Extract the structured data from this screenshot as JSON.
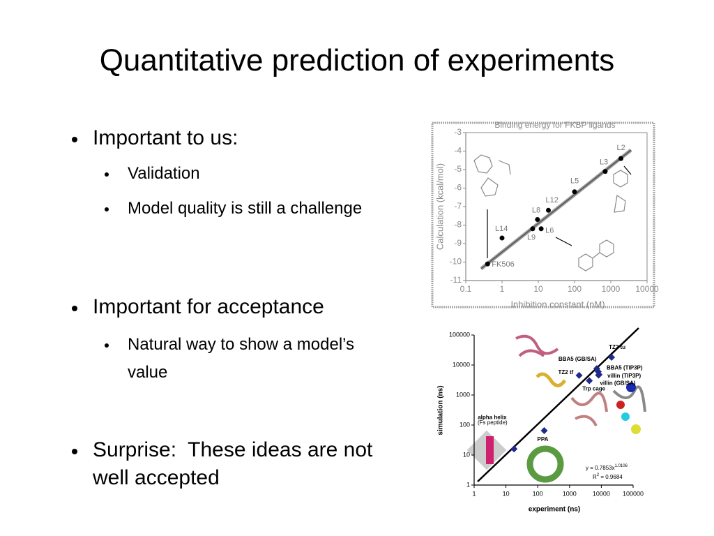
{
  "title": "Quantitative prediction of experiments",
  "bullets": [
    {
      "text": "Important to us:",
      "sub": [
        "Validation",
        "Model quality is still a challenge"
      ]
    },
    {
      "text": "Important for acceptance",
      "sub": [
        "Natural way to show a model’s value"
      ]
    },
    {
      "text": "Surprise:  These ideas are not well accepted"
    }
  ],
  "chart_data": [
    {
      "type": "scatter",
      "title": "Binding energy for FKBP ligands",
      "x_label": "Inhibition constant (nM)",
      "y_label": "Calculation (kcal/mol)",
      "xscale": "log",
      "xlim": [
        0.1,
        10000
      ],
      "xticks": [
        0.1,
        1,
        10,
        100,
        1000,
        10000
      ],
      "ylim": [
        -11,
        -3
      ],
      "yticks": [
        -3,
        -4,
        -5,
        -6,
        -7,
        -8,
        -9,
        -10,
        -11
      ],
      "color": "#000000",
      "points": [
        {
          "label": "FK506",
          "x": 0.4,
          "y": -10.1
        },
        {
          "label": "L14",
          "x": 1.0,
          "y": -8.7
        },
        {
          "label": "L9",
          "x": 7,
          "y": -8.2
        },
        {
          "label": "L6",
          "x": 12,
          "y": -8.2
        },
        {
          "label": "L8",
          "x": 9.5,
          "y": -7.7
        },
        {
          "label": "L12",
          "x": 19,
          "y": -7.2
        },
        {
          "label": "L5",
          "x": 100,
          "y": -6.2
        },
        {
          "label": "L3",
          "x": 700,
          "y": -5.1
        },
        {
          "label": "L2",
          "x": 1900,
          "y": -4.4
        }
      ]
    },
    {
      "type": "scatter",
      "x_label": "experiment (ns)",
      "y_label": "simulation (ns)",
      "xscale": "log",
      "yscale": "log",
      "xlim": [
        1,
        100000
      ],
      "xticks": [
        1,
        10,
        100,
        1000,
        10000,
        100000
      ],
      "ylim": [
        1,
        100000
      ],
      "yticks": [
        1,
        10,
        100,
        1000,
        10000,
        100000
      ],
      "color": "#1f2a8a",
      "points": [
        {
          "label": "alpha helix",
          "x": 18,
          "y": 16
        },
        {
          "label": "PPA",
          "x": 160,
          "y": 65
        },
        {
          "label": "TZ2 tf",
          "x": 2000,
          "y": 4500
        },
        {
          "label": "Trp cage",
          "x": 4200,
          "y": 3000
        },
        {
          "label": "BBA5 (GB/SA)",
          "x": 7200,
          "y": 7600
        },
        {
          "label": "BBA5 (TIP3P)",
          "x": 8000,
          "y": 6000
        },
        {
          "label": "villin (TIP3P)",
          "x": 8500,
          "y": 4800
        },
        {
          "label": "villin (GB/SA)",
          "x": 8200,
          "y": 4600
        },
        {
          "label": "TZ2 tu",
          "x": 21000,
          "y": 18000
        }
      ],
      "annotations": [
        "(Fs peptide)",
        "y = 0.7853x",
        "1.0106",
        "R",
        "2",
        " = 0.9684"
      ]
    }
  ]
}
